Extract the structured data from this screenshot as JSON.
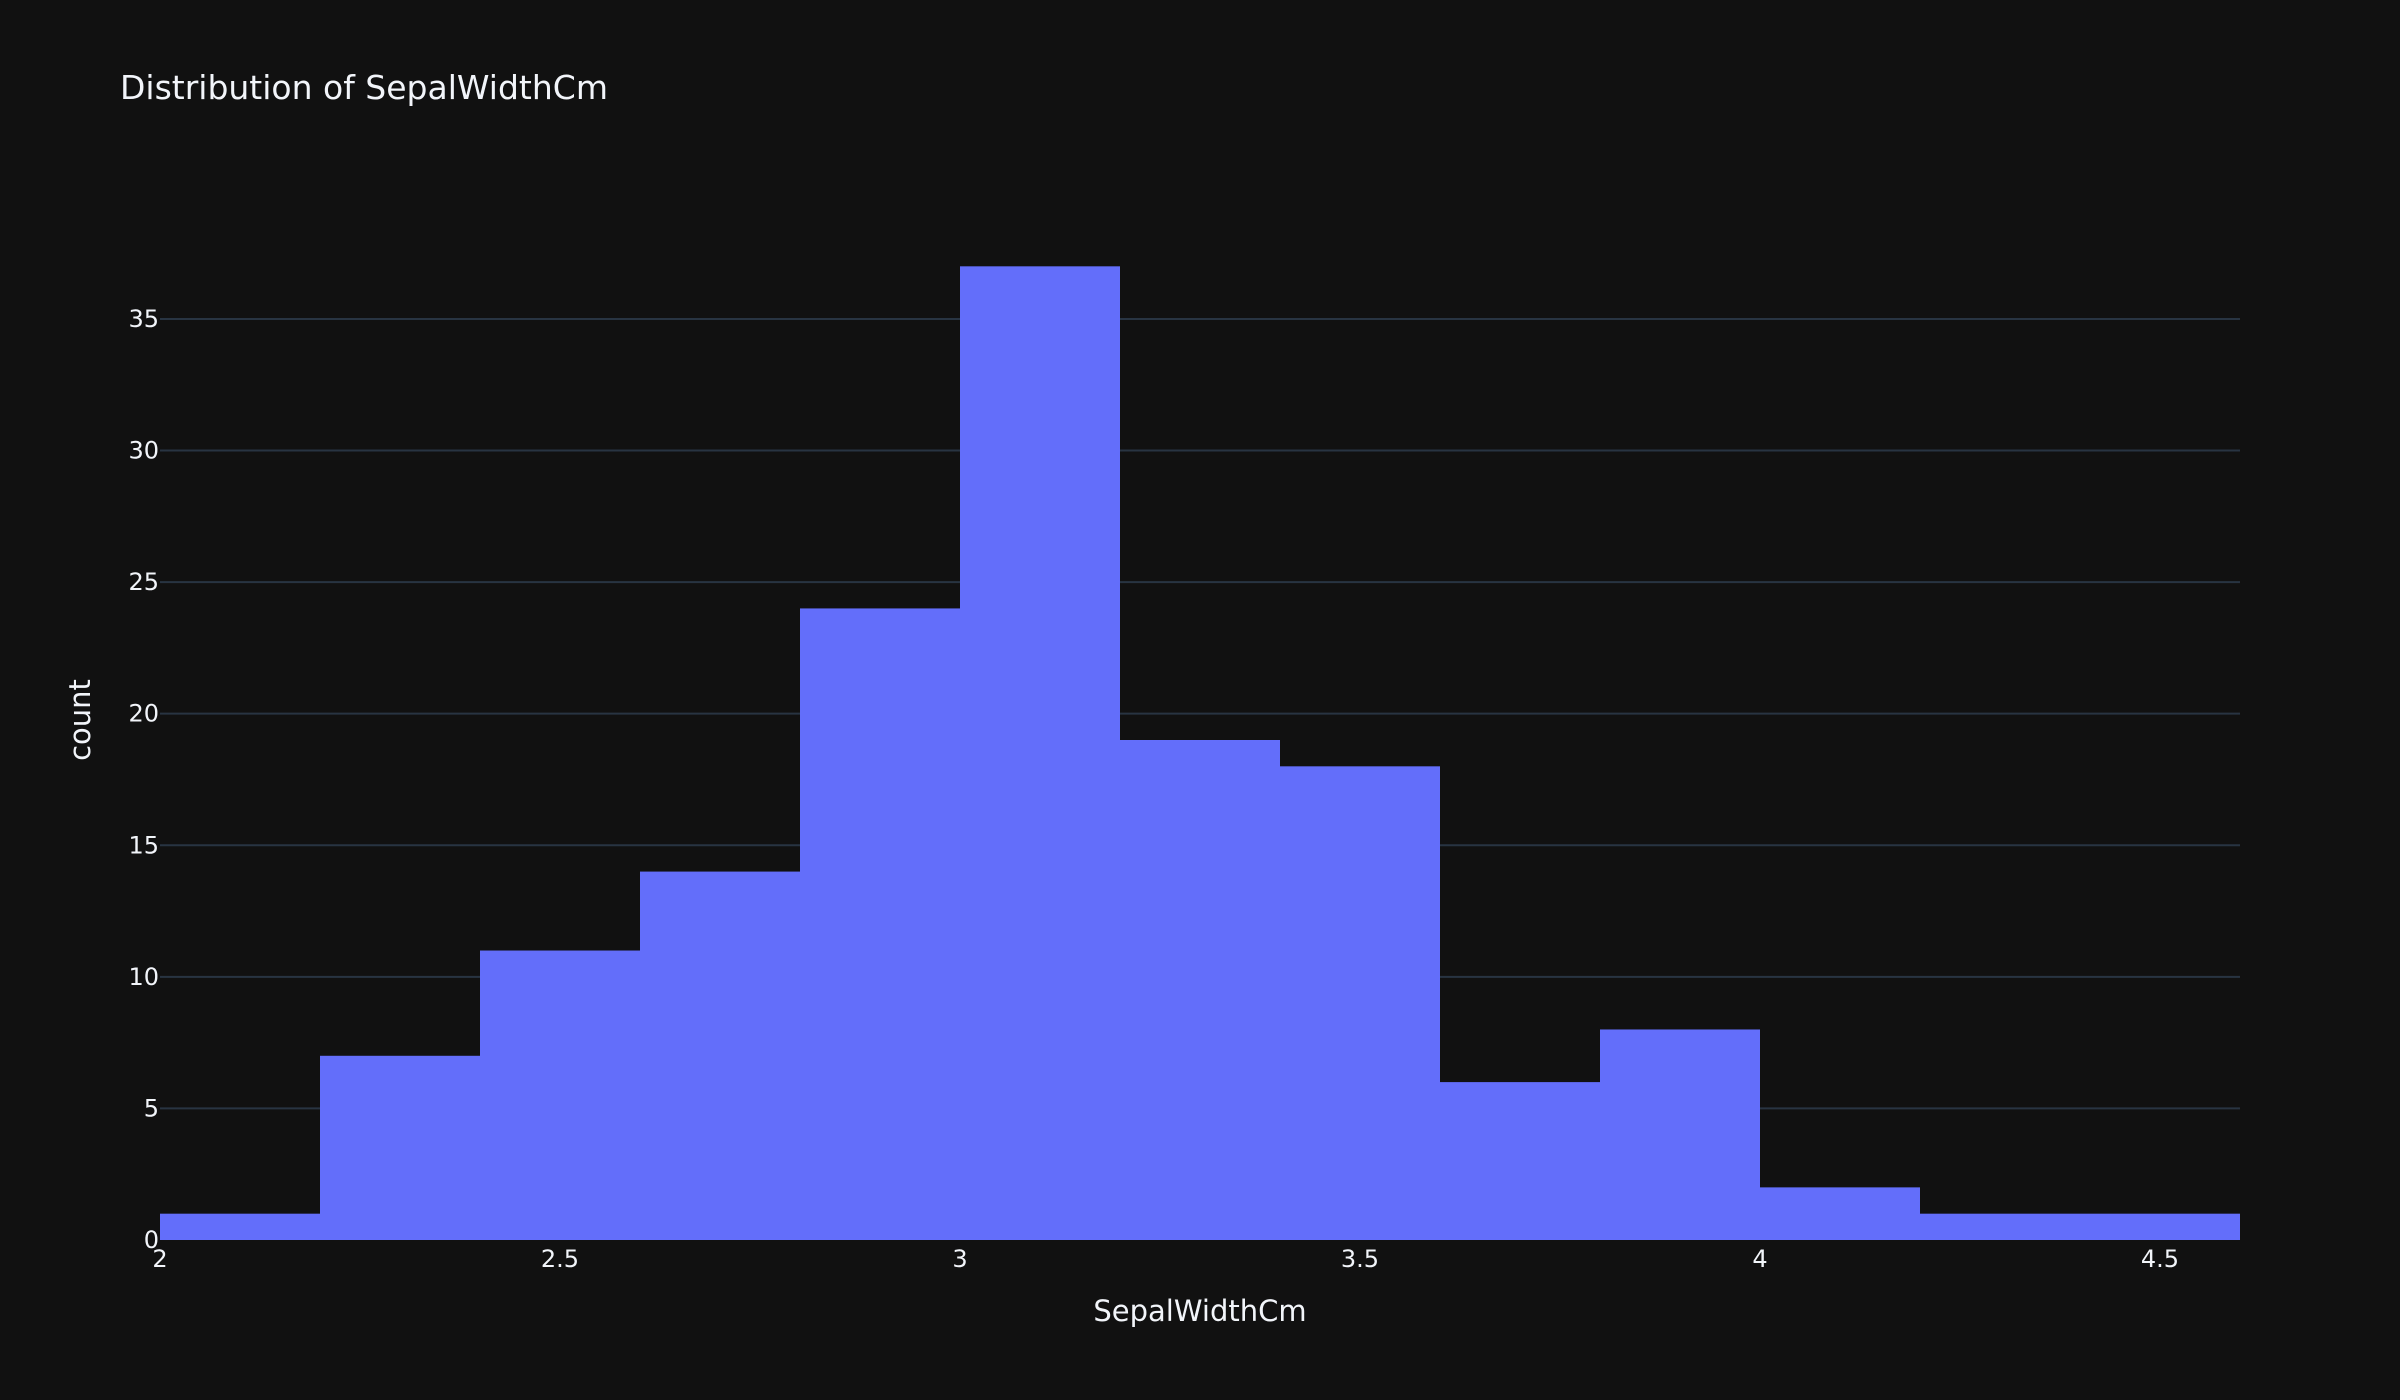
{
  "chart_data": {
    "type": "bar",
    "subtype": "histogram",
    "title": "Distribution of SepalWidthCm",
    "xlabel": "SepalWidthCm",
    "ylabel": "count",
    "bins": [
      {
        "x0": 2.0,
        "x1": 2.2,
        "count": 1
      },
      {
        "x0": 2.2,
        "x1": 2.4,
        "count": 7
      },
      {
        "x0": 2.4,
        "x1": 2.6,
        "count": 11
      },
      {
        "x0": 2.6,
        "x1": 2.8,
        "count": 14
      },
      {
        "x0": 2.8,
        "x1": 3.0,
        "count": 24
      },
      {
        "x0": 3.0,
        "x1": 3.2,
        "count": 37
      },
      {
        "x0": 3.2,
        "x1": 3.4,
        "count": 19
      },
      {
        "x0": 3.4,
        "x1": 3.6,
        "count": 18
      },
      {
        "x0": 3.6,
        "x1": 3.8,
        "count": 6
      },
      {
        "x0": 3.8,
        "x1": 4.0,
        "count": 8
      },
      {
        "x0": 4.0,
        "x1": 4.2,
        "count": 2
      },
      {
        "x0": 4.2,
        "x1": 4.4,
        "count": 1
      },
      {
        "x0": 4.4,
        "x1": 4.6,
        "count": 1
      }
    ],
    "xlim": [
      2.0,
      4.6
    ],
    "ylim": [
      0,
      38
    ],
    "xticks": [
      {
        "value": 2,
        "label": "2"
      },
      {
        "value": 2.5,
        "label": "2.5"
      },
      {
        "value": 3,
        "label": "3"
      },
      {
        "value": 3.5,
        "label": "3.5"
      },
      {
        "value": 4,
        "label": "4"
      },
      {
        "value": 4.5,
        "label": "4.5"
      }
    ],
    "yticks": [
      {
        "value": 0,
        "label": "0"
      },
      {
        "value": 5,
        "label": "5"
      },
      {
        "value": 10,
        "label": "10"
      },
      {
        "value": 15,
        "label": "15"
      },
      {
        "value": 20,
        "label": "20"
      },
      {
        "value": 25,
        "label": "25"
      },
      {
        "value": 30,
        "label": "30"
      },
      {
        "value": 35,
        "label": "35"
      }
    ],
    "grid": true,
    "colors": {
      "background": "#111111",
      "bar": "#636efa",
      "grid": "#283442",
      "text": "#f2f5fa"
    }
  }
}
